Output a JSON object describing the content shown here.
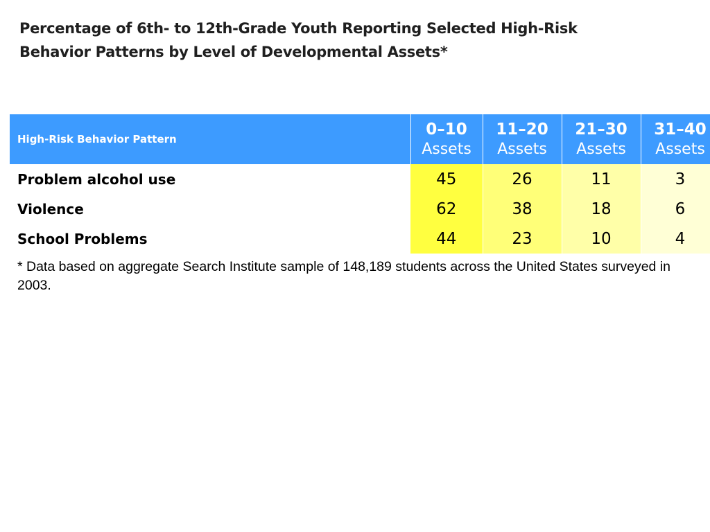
{
  "title": {
    "line1": "Percentage of 6th- to 12th-Grade Youth Reporting Selected High-Risk",
    "line2": "Behavior Patterns by Level of Developmental Assets*"
  },
  "table": {
    "label_header": "High-Risk Behavior Pattern",
    "columns": [
      {
        "range": "0–10",
        "unit": "Assets"
      },
      {
        "range": "11–20",
        "unit": "Assets"
      },
      {
        "range": "21–30",
        "unit": "Assets"
      },
      {
        "range": "31–40",
        "unit": "Assets"
      }
    ],
    "rows": [
      {
        "label": "Problem alcohol use",
        "values": [
          "45",
          "26",
          "11",
          "3"
        ]
      },
      {
        "label": "Violence",
        "values": [
          "62",
          "38",
          "18",
          "6"
        ]
      },
      {
        "label": "School Problems",
        "values": [
          "44",
          "23",
          "10",
          "4"
        ]
      }
    ]
  },
  "footnote": "* Data based on aggregate Search Institute sample of 148,189 students across the United States surveyed in 2003.",
  "colors": {
    "header_bg": "#3d9bff",
    "col_0_10": "#ffff40",
    "col_11_20": "#ffff78",
    "col_21_30": "#ffffa8",
    "col_31_40": "#ffffd6"
  }
}
